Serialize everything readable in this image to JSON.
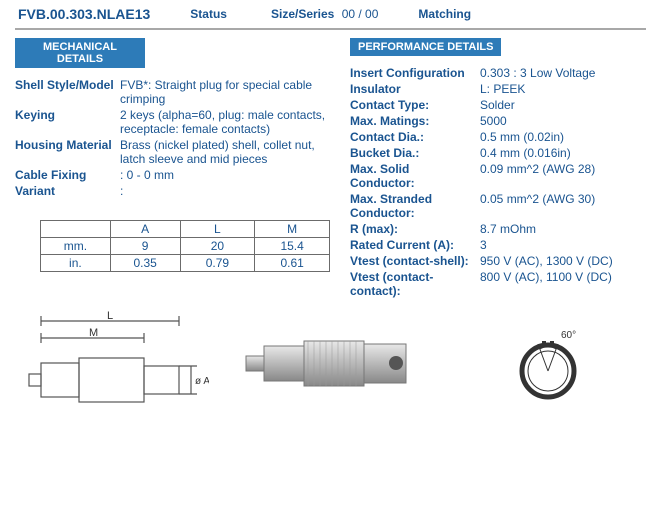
{
  "header": {
    "part_number": "FVB.00.303.NLAE13",
    "status_label": "Status",
    "status_value": "",
    "size_label": "Size/Series",
    "size_value": "00 / 00",
    "matching_label": "Matching",
    "matching_value": ""
  },
  "mechanical": {
    "title": "MECHANICAL DETAILS",
    "rows": [
      {
        "k": "Shell Style/Model",
        "v": "FVB*: Straight plug for special cable crimping"
      },
      {
        "k": "Keying",
        "v": "2 keys (alpha=60, plug: male contacts, receptacle: female contacts)"
      },
      {
        "k": "Housing Material",
        "v": "Brass (nickel plated) shell, collet nut, latch sleeve and mid pieces"
      },
      {
        "k": "Cable Fixing",
        "v": ": 0 - 0 mm"
      },
      {
        "k": "Variant",
        "v": ":"
      }
    ]
  },
  "performance": {
    "title": "PERFORMANCE DETAILS",
    "rows": [
      {
        "k": "Insert Configuration",
        "v": "0.303 : 3 Low Voltage"
      },
      {
        "k": "Insulator",
        "v": "L: PEEK"
      },
      {
        "k": "Contact Type:",
        "v": "Solder"
      },
      {
        "k": "Max. Matings:",
        "v": "5000"
      },
      {
        "k": "Contact Dia.:",
        "v": "0.5 mm (0.02in)"
      },
      {
        "k": "Bucket Dia.:",
        "v": "0.4 mm (0.016in)"
      },
      {
        "k": "Max. Solid Conductor:",
        "v": "0.09 mm^2 (AWG 28)"
      },
      {
        "k": "Max. Stranded Conductor:",
        "v": "0.05 mm^2 (AWG 30)"
      },
      {
        "k": "R (max):",
        "v": "8.7 mOhm"
      },
      {
        "k": "Rated Current (A):",
        "v": "3"
      },
      {
        "k": "Vtest (contact-shell):",
        "v": "950 V (AC), 1300 V (DC)"
      },
      {
        "k": "Vtest (contact-contact):",
        "v": "800 V (AC), 1100 V (DC)"
      }
    ]
  },
  "dim_table": {
    "cols": [
      "",
      "A",
      "L",
      "M"
    ],
    "rows": [
      [
        "mm.",
        "9",
        "20",
        "15.4"
      ],
      [
        "in.",
        "0.35",
        "0.79",
        "0.61"
      ]
    ],
    "col_widths": [
      "70px",
      "70px",
      "75px",
      "75px"
    ]
  },
  "styling": {
    "link_blue": "#1a5490",
    "header_bg": "#2d7bb8",
    "hr_color": "#a8a8a8",
    "table_border": "#6b6b6b",
    "body_font_size": 12,
    "header_font_size": 11
  },
  "diagrams": {
    "left_labels": {
      "L": "L",
      "M": "M",
      "phiA": "ø A"
    },
    "right_label": "60°"
  }
}
